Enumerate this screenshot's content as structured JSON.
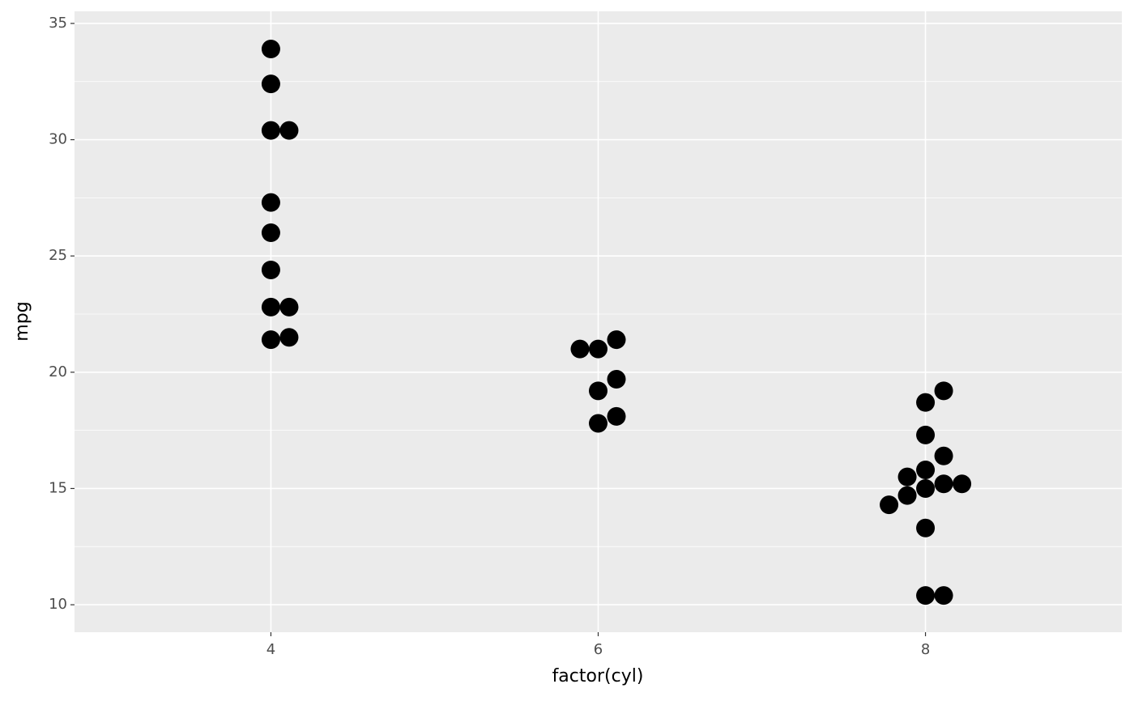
{
  "chart_data": {
    "type": "dotplot",
    "x_label": "factor(cyl)",
    "y_label": "mpg",
    "categories": [
      "4",
      "6",
      "8"
    ],
    "groups": [
      {
        "values": [
          22.8,
          24.4,
          22.8,
          32.4,
          30.4,
          33.9,
          21.5,
          27.3,
          26.0,
          30.4,
          21.4
        ]
      },
      {
        "values": [
          21.0,
          21.0,
          21.4,
          18.1,
          19.2,
          17.8,
          19.7
        ]
      },
      {
        "values": [
          18.7,
          14.3,
          16.4,
          17.3,
          15.2,
          10.4,
          10.4,
          14.7,
          15.5,
          15.2,
          13.3,
          19.2,
          15.8,
          15.0
        ]
      }
    ],
    "color": "#000000",
    "ylim": [
      8.82,
      35.52
    ],
    "yticks": [
      10,
      15,
      20,
      25,
      30,
      35
    ],
    "grid": true
  }
}
